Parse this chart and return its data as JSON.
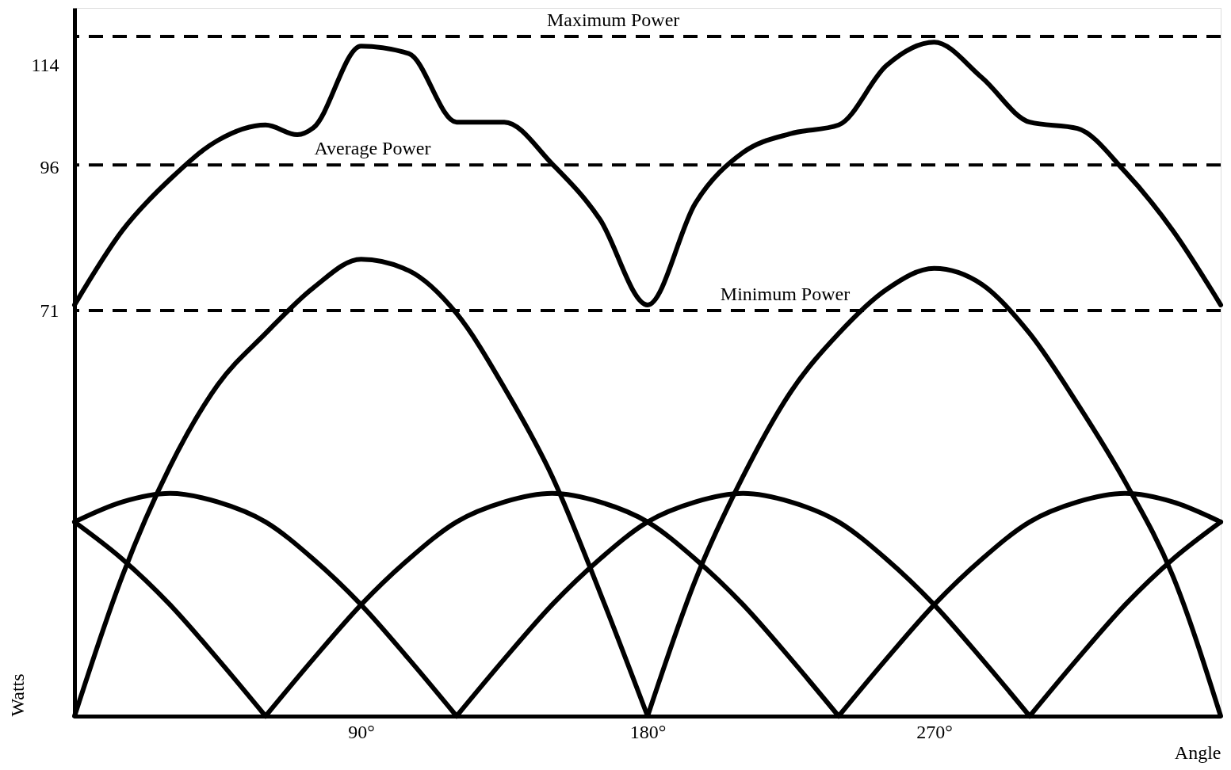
{
  "chart_data": {
    "type": "line",
    "xlabel": "Angle",
    "ylabel": "Watts",
    "xlim": [
      0,
      360
    ],
    "ylim": [
      0,
      124
    ],
    "xticks": [
      {
        "value": 90,
        "label": "90°"
      },
      {
        "value": 180,
        "label": "180°"
      },
      {
        "value": 270,
        "label": "270°"
      }
    ],
    "yticks": [
      71,
      96,
      114
    ],
    "grid": false,
    "marker": "none",
    "line_style": "solid",
    "series": [
      {
        "color": "#000000",
        "x": [
          0,
          15,
          30,
          45,
          60,
          70,
          75,
          90,
          105,
          120,
          135,
          150,
          165,
          180,
          195,
          210,
          225,
          240,
          255,
          270,
          285,
          300,
          315,
          330,
          345,
          360
        ],
        "values": [
          72,
          85,
          94,
          100.8,
          103.5,
          101.8,
          103,
          117.3,
          116,
          104,
          104,
          96.7,
          87,
          72,
          89.8,
          98.7,
          102,
          103.5,
          113.9,
          118,
          111.8,
          104,
          102.9,
          95.3,
          85,
          72
        ]
      },
      {
        "color": "#000000",
        "x": [
          0,
          15,
          30,
          45,
          60,
          75,
          90,
          105,
          120,
          135,
          150,
          165,
          180
        ],
        "values": [
          0,
          24.5,
          43.7,
          58,
          67,
          75,
          80,
          78,
          70.5,
          57.5,
          42,
          21.7,
          0
        ]
      },
      {
        "color": "#000000",
        "x": [
          180,
          195,
          210,
          225,
          240,
          255,
          270,
          285,
          300,
          315,
          330,
          345,
          360
        ],
        "values": [
          0,
          23.8,
          42,
          56.8,
          67,
          74.7,
          78.4,
          75.6,
          67,
          54.7,
          41,
          24.5,
          0
        ]
      },
      {
        "color": "#000000",
        "x": [
          0,
          15,
          30,
          45,
          60
        ],
        "values": [
          34,
          27.5,
          19.5,
          10,
          0
        ]
      },
      {
        "color": "#000000",
        "x": [
          0,
          15,
          30,
          45,
          60,
          75,
          90,
          105,
          120
        ],
        "values": [
          34,
          37.5,
          39,
          37.5,
          34,
          27.5,
          19.5,
          10,
          0
        ]
      },
      {
        "color": "#000000",
        "x": [
          60,
          75,
          90,
          105,
          120,
          135,
          150,
          165,
          180,
          195,
          210,
          225,
          240
        ],
        "values": [
          0,
          10,
          19.5,
          27.5,
          34,
          37.5,
          39,
          37.5,
          34,
          27.5,
          19.5,
          10,
          0
        ]
      },
      {
        "color": "#000000",
        "x": [
          120,
          135,
          150,
          165,
          180,
          195,
          210,
          225,
          240,
          255,
          270,
          285,
          300
        ],
        "values": [
          0,
          10,
          19.5,
          27.5,
          34,
          37.5,
          39,
          37.5,
          34,
          27.5,
          19.5,
          10,
          0
        ]
      },
      {
        "color": "#000000",
        "x": [
          240,
          255,
          270,
          285,
          300,
          315,
          330,
          345,
          360
        ],
        "values": [
          0,
          10,
          19.5,
          27.5,
          34,
          37.5,
          39,
          37.5,
          34
        ]
      },
      {
        "color": "#000000",
        "x": [
          300,
          315,
          330,
          345,
          360
        ],
        "values": [
          0,
          10,
          19.5,
          27.5,
          34
        ]
      }
    ],
    "ref_lines": [
      {
        "axis": "y",
        "value": 119,
        "label": "Maximum Power",
        "color": "#000000",
        "line_style": "dashed"
      },
      {
        "axis": "y",
        "value": 96.5,
        "label": "Average Power",
        "color": "#000000",
        "line_style": "dashed"
      },
      {
        "axis": "y",
        "value": 71,
        "label": "Minimum Power",
        "color": "#000000",
        "line_style": "dashed"
      }
    ]
  }
}
